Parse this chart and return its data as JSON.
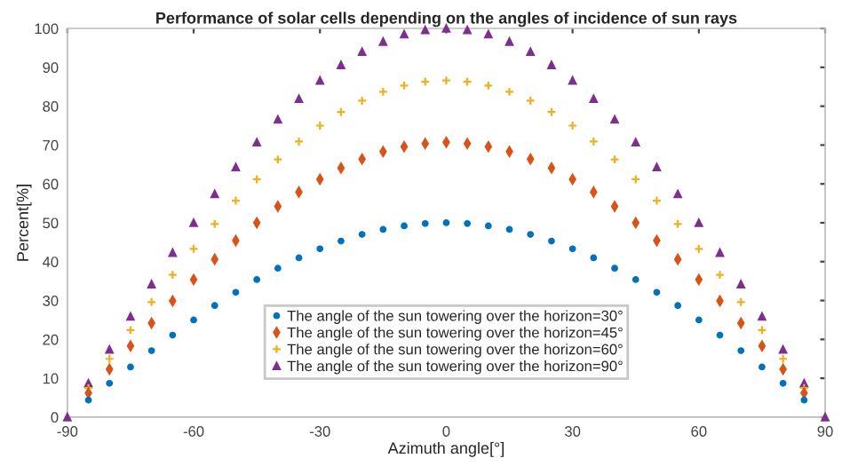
{
  "chart_data": {
    "type": "scatter",
    "title": "Performance of solar cells depending on the angles of incidence of sun rays",
    "xlabel": "Azimuth angle[°]",
    "ylabel": "Percent[%]",
    "x": [
      -90,
      -85,
      -80,
      -75,
      -70,
      -65,
      -60,
      -55,
      -50,
      -45,
      -40,
      -35,
      -30,
      -25,
      -20,
      -15,
      -10,
      -5,
      0,
      5,
      10,
      15,
      20,
      25,
      30,
      35,
      40,
      45,
      50,
      55,
      60,
      65,
      70,
      75,
      80,
      85,
      90
    ],
    "series": [
      {
        "name": "The angle of the sun towering over the horizon=30°",
        "color": "#0072bd",
        "marker": "circle",
        "values": [
          null,
          4.4,
          8.7,
          12.9,
          17.1,
          21.1,
          25.0,
          28.7,
          32.1,
          35.4,
          38.3,
          41.0,
          43.3,
          45.3,
          47.0,
          48.3,
          49.2,
          49.8,
          50,
          49.8,
          49.2,
          48.3,
          47.0,
          45.3,
          43.3,
          41.0,
          38.3,
          35.4,
          32.1,
          28.7,
          25.0,
          21.1,
          17.1,
          12.9,
          8.7,
          4.4,
          null
        ]
      },
      {
        "name": "The angle of the sun towering over the horizon=45°",
        "color": "#d95319",
        "marker": "diamond",
        "values": [
          null,
          6.2,
          12.3,
          18.3,
          24.2,
          29.9,
          35.4,
          40.6,
          45.4,
          50.0,
          54.2,
          57.9,
          61.2,
          64.1,
          66.4,
          68.3,
          69.6,
          70.4,
          70.7,
          70.4,
          69.6,
          68.3,
          66.4,
          64.1,
          61.2,
          57.9,
          54.2,
          50.0,
          45.4,
          40.6,
          35.4,
          29.9,
          24.2,
          18.3,
          12.3,
          6.2,
          null
        ]
      },
      {
        "name": "The angle of the sun towering over the horizon=60°",
        "color": "#edb120",
        "marker": "cross",
        "values": [
          null,
          7.5,
          15.0,
          22.4,
          29.6,
          36.6,
          43.3,
          49.7,
          55.7,
          61.2,
          66.3,
          70.9,
          75.0,
          78.5,
          81.4,
          83.7,
          85.3,
          86.3,
          86.6,
          86.3,
          85.3,
          83.7,
          81.4,
          78.5,
          75.0,
          70.9,
          66.3,
          61.2,
          55.7,
          49.7,
          43.3,
          36.6,
          29.6,
          22.4,
          15.0,
          7.5,
          null
        ]
      },
      {
        "name": "The angle of the sun towering over the horizon=90°",
        "color": "#7e2f8e",
        "marker": "triangle",
        "values": [
          0,
          8.7,
          17.4,
          25.9,
          34.2,
          42.3,
          50.0,
          57.4,
          64.3,
          70.7,
          76.6,
          81.9,
          86.6,
          90.6,
          94.0,
          96.6,
          98.5,
          99.6,
          100,
          99.6,
          98.5,
          96.6,
          94.0,
          90.6,
          86.6,
          81.9,
          76.6,
          70.7,
          64.3,
          57.4,
          50.0,
          42.3,
          34.2,
          25.9,
          17.4,
          8.7,
          0
        ]
      }
    ],
    "xlim": [
      -90,
      90
    ],
    "ylim": [
      0,
      100
    ],
    "xticks": [
      -90,
      -60,
      -30,
      0,
      30,
      60,
      90
    ],
    "yticks": [
      0,
      10,
      20,
      30,
      40,
      50,
      60,
      70,
      80,
      90,
      100
    ],
    "grid": false,
    "legend": "bottom"
  }
}
